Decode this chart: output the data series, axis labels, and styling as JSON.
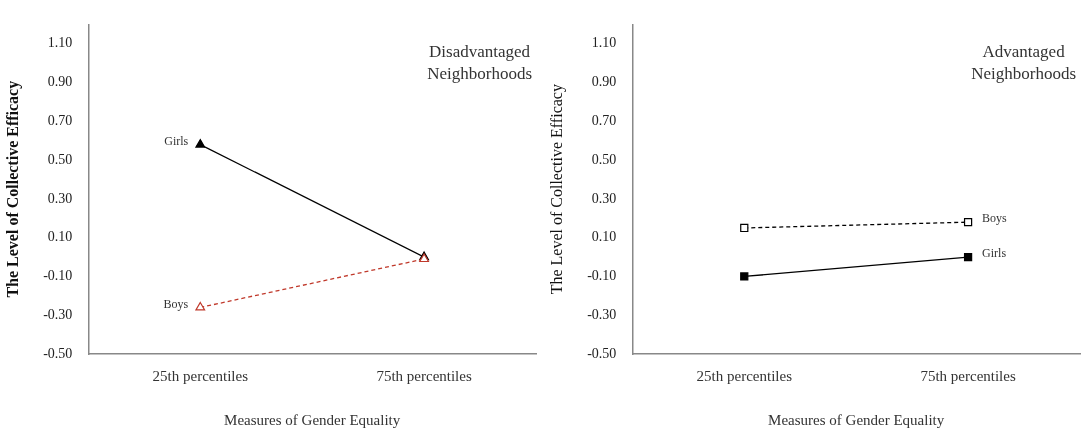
{
  "chart_data": [
    {
      "type": "line",
      "xlabel": "Measures of Gender Equality",
      "ylabel": "The Level of Collective Efficacy",
      "annotations": [
        "Disadvantaged Neighborhoods"
      ],
      "categories": [
        "25th percentiles",
        "75th percentiles"
      ],
      "series": [
        {
          "name": "Girls",
          "color": "#000000",
          "values": [
            0.58,
            0.0
          ],
          "marker": "triangle",
          "line_style": "solid"
        },
        {
          "name": "Boys",
          "color": "#c0392b",
          "values": [
            -0.26,
            -0.01
          ],
          "marker": "triangle",
          "line_style": "dashed"
        }
      ],
      "ylim": [
        -0.5,
        1.2
      ],
      "yticks": [
        {
          "value": -0.5,
          "label": "-0.50"
        },
        {
          "value": -0.3,
          "label": "-0.30"
        },
        {
          "value": -0.1,
          "label": "-0.10"
        },
        {
          "value": 0.1,
          "label": "0.10"
        },
        {
          "value": 0.3,
          "label": "0.30"
        },
        {
          "value": 0.5,
          "label": "0.50"
        },
        {
          "value": 0.7,
          "label": "0.70"
        },
        {
          "value": 0.9,
          "label": "0.90"
        },
        {
          "value": 1.1,
          "label": "1.10"
        }
      ],
      "grid": false,
      "legend": false
    },
    {
      "type": "line",
      "xlabel": "Measures of Gender Equality",
      "ylabel": "The Level of Collective Efficacy",
      "annotations": [
        "Advantaged Neighborhoods"
      ],
      "categories": [
        "25th percentiles",
        "75th percentiles"
      ],
      "series": [
        {
          "name": "Boys",
          "color": "#000000",
          "values": [
            0.15,
            0.18
          ],
          "marker": "square",
          "line_style": "dashed"
        },
        {
          "name": "Girls",
          "color": "#000000",
          "values": [
            -0.1,
            0.0
          ],
          "marker": "square",
          "line_style": "solid"
        }
      ],
      "ylim": [
        -0.5,
        1.2
      ],
      "yticks": [
        {
          "value": -0.5,
          "label": "-0.50"
        },
        {
          "value": -0.3,
          "label": "-0.30"
        },
        {
          "value": -0.1,
          "label": "-0.10"
        },
        {
          "value": 0.1,
          "label": "0.10"
        },
        {
          "value": 0.3,
          "label": "0.30"
        },
        {
          "value": 0.5,
          "label": "0.50"
        },
        {
          "value": 0.7,
          "label": "0.70"
        },
        {
          "value": 0.9,
          "label": "0.90"
        },
        {
          "value": 1.1,
          "label": "1.10"
        }
      ],
      "grid": false,
      "legend": false
    }
  ]
}
